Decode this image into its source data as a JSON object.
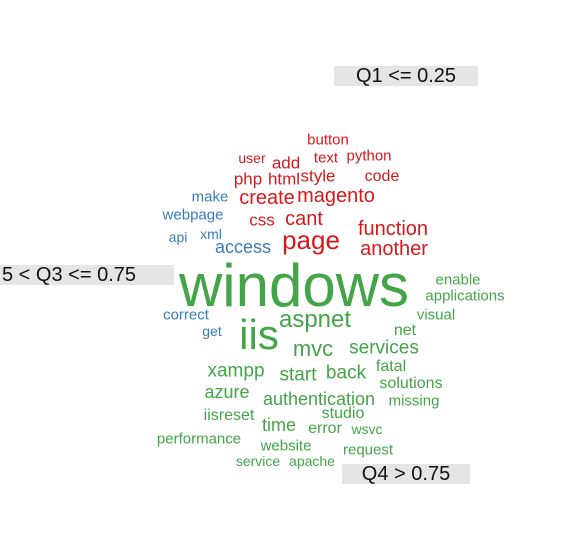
{
  "colors": {
    "red": "#d7191c",
    "blue": "#3a7cbb",
    "green": "#43a548"
  },
  "labels": {
    "q1": "Q1 <= 0.25",
    "q3": "5 < Q3 <= 0.75",
    "q4": "Q4 > 0.75"
  },
  "words": [
    {
      "text": "button",
      "color": "red"
    },
    {
      "text": "user",
      "color": "red"
    },
    {
      "text": "add",
      "color": "red"
    },
    {
      "text": "text",
      "color": "red"
    },
    {
      "text": "python",
      "color": "red"
    },
    {
      "text": "php",
      "color": "red"
    },
    {
      "text": "html",
      "color": "red"
    },
    {
      "text": "style",
      "color": "red"
    },
    {
      "text": "code",
      "color": "red"
    },
    {
      "text": "create",
      "color": "red"
    },
    {
      "text": "magento",
      "color": "red"
    },
    {
      "text": "css",
      "color": "red"
    },
    {
      "text": "cant",
      "color": "red"
    },
    {
      "text": "function",
      "color": "red"
    },
    {
      "text": "page",
      "color": "red"
    },
    {
      "text": "another",
      "color": "red"
    },
    {
      "text": "make",
      "color": "blue"
    },
    {
      "text": "webpage",
      "color": "blue"
    },
    {
      "text": "api",
      "color": "blue"
    },
    {
      "text": "xml",
      "color": "blue"
    },
    {
      "text": "access",
      "color": "blue"
    },
    {
      "text": "correct",
      "color": "blue"
    },
    {
      "text": "get",
      "color": "blue"
    },
    {
      "text": "windows",
      "color": "green"
    },
    {
      "text": "enable",
      "color": "green"
    },
    {
      "text": "applications",
      "color": "green"
    },
    {
      "text": "iis",
      "color": "green"
    },
    {
      "text": "aspnet",
      "color": "green"
    },
    {
      "text": "visual",
      "color": "green"
    },
    {
      "text": "net",
      "color": "green"
    },
    {
      "text": "mvc",
      "color": "green"
    },
    {
      "text": "services",
      "color": "green"
    },
    {
      "text": "fatal",
      "color": "green"
    },
    {
      "text": "xampp",
      "color": "green"
    },
    {
      "text": "start",
      "color": "green"
    },
    {
      "text": "back",
      "color": "green"
    },
    {
      "text": "solutions",
      "color": "green"
    },
    {
      "text": "azure",
      "color": "green"
    },
    {
      "text": "authentication",
      "color": "green"
    },
    {
      "text": "missing",
      "color": "green"
    },
    {
      "text": "iisreset",
      "color": "green"
    },
    {
      "text": "studio",
      "color": "green"
    },
    {
      "text": "time",
      "color": "green"
    },
    {
      "text": "error",
      "color": "green"
    },
    {
      "text": "wsvc",
      "color": "green"
    },
    {
      "text": "performance",
      "color": "green"
    },
    {
      "text": "website",
      "color": "green"
    },
    {
      "text": "request",
      "color": "green"
    },
    {
      "text": "service",
      "color": "green"
    },
    {
      "text": "apache",
      "color": "green"
    }
  ]
}
